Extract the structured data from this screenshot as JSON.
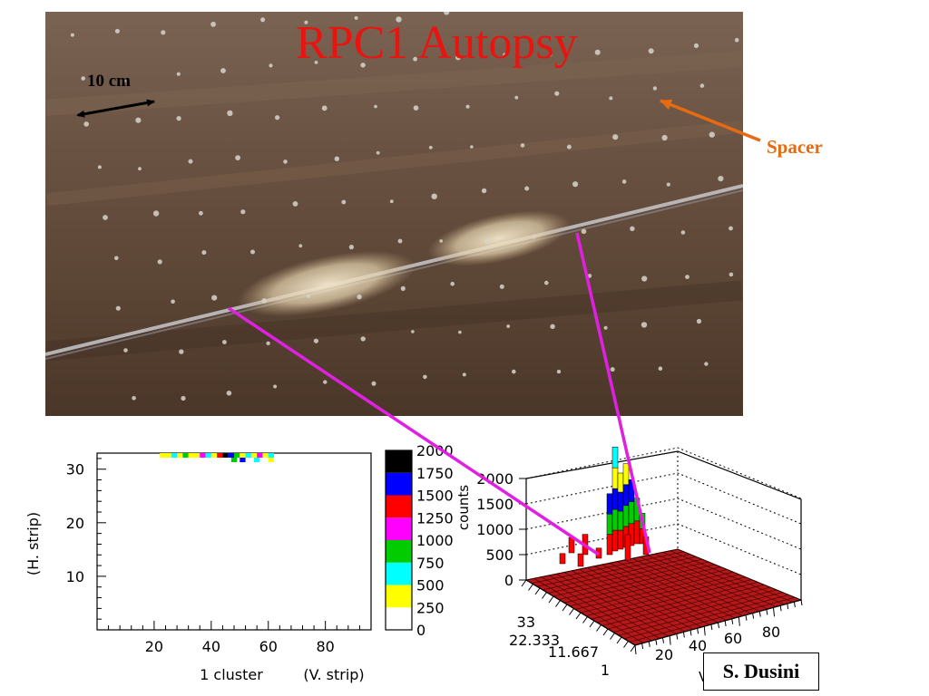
{
  "slide": {
    "title": "RPC1 Autopsy",
    "scale_label": "10 cm",
    "spacer_label": "Spacer",
    "author": "S. Dusini"
  },
  "colors": {
    "title": "#e8140f",
    "spacer": "#e86a10",
    "connector": "#e020e0",
    "photo_bg": "#6b5443",
    "bar_fill": "#d61a1a"
  },
  "chart_data": [
    {
      "type": "heatmap",
      "ylabel": "(H. strip)",
      "xlabel_left": "1 cluster",
      "xlabel": "(V. strip)",
      "xticks": [
        20,
        40,
        60,
        80
      ],
      "yticks": [
        10,
        20,
        30
      ],
      "xlim": [
        0,
        96
      ],
      "ylim": [
        0,
        33
      ],
      "colorbar": {
        "ticks": [
          0,
          250,
          500,
          750,
          1000,
          1250,
          1500,
          1750,
          2000
        ],
        "colors": [
          "#ffffff",
          "#ffff00",
          "#00ffff",
          "#00cc00",
          "#ff00ff",
          "#ff0000",
          "#0000ff",
          "#000000"
        ]
      }
    },
    {
      "type": "bar",
      "subtype": "3d-lego",
      "zlabel": "counts",
      "zticks": [
        0,
        500,
        1000,
        1500,
        2000
      ],
      "z_tick_labels": [
        "0",
        "500",
        "1000",
        "1500",
        "2000"
      ],
      "y_tick_labels": [
        "1",
        "11.667",
        "22.333",
        "33"
      ],
      "x_tick_labels": [
        "20",
        "40",
        "60",
        "80"
      ],
      "x_axis_visible_fragment": "V"
    }
  ]
}
